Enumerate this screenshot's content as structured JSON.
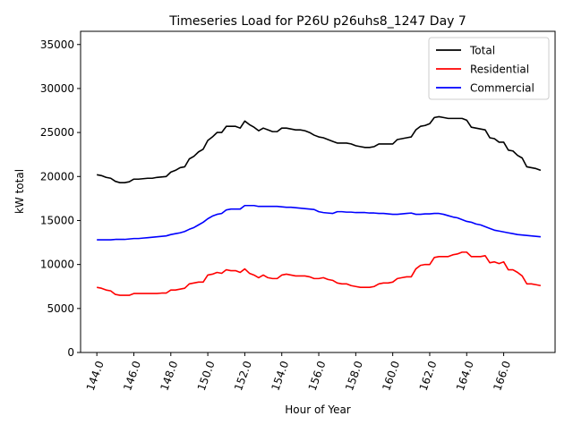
{
  "chart_data": {
    "type": "line",
    "title": "Timeseries Load for P26U p26uhs8_1247  Day 7",
    "xlabel": "Hour of Year",
    "ylabel": "kW total",
    "xlim": [
      143.12,
      168.78
    ],
    "ylim": [
      0,
      36500
    ],
    "xticks": [
      144,
      146,
      148,
      150,
      152,
      154,
      156,
      158,
      160,
      162,
      164,
      166
    ],
    "xtick_labels": [
      "144.0",
      "146.0",
      "148.0",
      "150.0",
      "152.0",
      "154.0",
      "156.0",
      "158.0",
      "160.0",
      "162.0",
      "164.0",
      "166.0"
    ],
    "yticks": [
      0,
      5000,
      10000,
      15000,
      20000,
      25000,
      30000,
      35000
    ],
    "ytick_labels": [
      "0",
      "5000",
      "10000",
      "15000",
      "20000",
      "25000",
      "30000",
      "35000"
    ],
    "legend_position": "top-right",
    "x_start": 144.0,
    "x_step": 0.25,
    "series": [
      {
        "name": "Total",
        "color": "#000000",
        "values": [
          20200,
          20100,
          19900,
          19800,
          19450,
          19300,
          19300,
          19400,
          19700,
          19700,
          19750,
          19800,
          19800,
          19900,
          19950,
          20000,
          20500,
          20700,
          21000,
          21100,
          22000,
          22300,
          22800,
          23100,
          24100,
          24500,
          25000,
          25000,
          25700,
          25700,
          25700,
          25500,
          26300,
          25900,
          25600,
          25200,
          25500,
          25300,
          25100,
          25100,
          25500,
          25500,
          25400,
          25300,
          25300,
          25200,
          25000,
          24700,
          24500,
          24400,
          24200,
          24000,
          23800,
          23800,
          23800,
          23700,
          23500,
          23400,
          23300,
          23300,
          23400,
          23700,
          23700,
          23700,
          23700,
          24200,
          24300,
          24400,
          24500,
          25300,
          25700,
          25800,
          26000,
          26700,
          26800,
          26700,
          26600,
          26600,
          26600,
          26600,
          26400,
          25600,
          25500,
          25400,
          25300,
          24400,
          24300,
          23900,
          23900,
          23000,
          22900,
          22400,
          22100,
          21100,
          21000,
          20900,
          20700
        ]
      },
      {
        "name": "Residential",
        "color": "#ff0000",
        "values": [
          7400,
          7300,
          7100,
          7000,
          6600,
          6500,
          6500,
          6500,
          6700,
          6700,
          6700,
          6700,
          6700,
          6700,
          6750,
          6750,
          7100,
          7100,
          7200,
          7300,
          7800,
          7900,
          8000,
          8000,
          8800,
          8900,
          9100,
          9000,
          9400,
          9300,
          9300,
          9100,
          9500,
          9000,
          8800,
          8500,
          8800,
          8500,
          8400,
          8400,
          8800,
          8900,
          8800,
          8700,
          8700,
          8700,
          8600,
          8400,
          8400,
          8500,
          8300,
          8200,
          7900,
          7800,
          7800,
          7600,
          7500,
          7400,
          7400,
          7400,
          7500,
          7800,
          7900,
          7900,
          8000,
          8400,
          8500,
          8600,
          8600,
          9500,
          9900,
          10000,
          10000,
          10800,
          10900,
          10900,
          10900,
          11100,
          11200,
          11400,
          11400,
          10900,
          10900,
          10900,
          11000,
          10200,
          10300,
          10100,
          10300,
          9400,
          9400,
          9100,
          8700,
          7800,
          7800,
          7700,
          7600
        ]
      },
      {
        "name": "Commercial",
        "color": "#0000ff",
        "values": [
          12800,
          12800,
          12800,
          12800,
          12850,
          12850,
          12850,
          12900,
          12950,
          12950,
          13000,
          13050,
          13100,
          13150,
          13200,
          13250,
          13400,
          13500,
          13600,
          13750,
          14000,
          14200,
          14500,
          14800,
          15200,
          15500,
          15700,
          15800,
          16200,
          16300,
          16300,
          16300,
          16700,
          16700,
          16700,
          16600,
          16600,
          16600,
          16600,
          16600,
          16550,
          16500,
          16500,
          16450,
          16400,
          16350,
          16300,
          16250,
          16000,
          15900,
          15850,
          15800,
          16000,
          16000,
          15950,
          15950,
          15900,
          15900,
          15900,
          15850,
          15850,
          15800,
          15800,
          15750,
          15700,
          15700,
          15750,
          15800,
          15850,
          15700,
          15700,
          15750,
          15750,
          15800,
          15800,
          15700,
          15550,
          15400,
          15300,
          15100,
          14900,
          14800,
          14600,
          14500,
          14300,
          14100,
          13900,
          13800,
          13700,
          13600,
          13500,
          13400,
          13350,
          13300,
          13250,
          13200,
          13150
        ]
      }
    ]
  }
}
